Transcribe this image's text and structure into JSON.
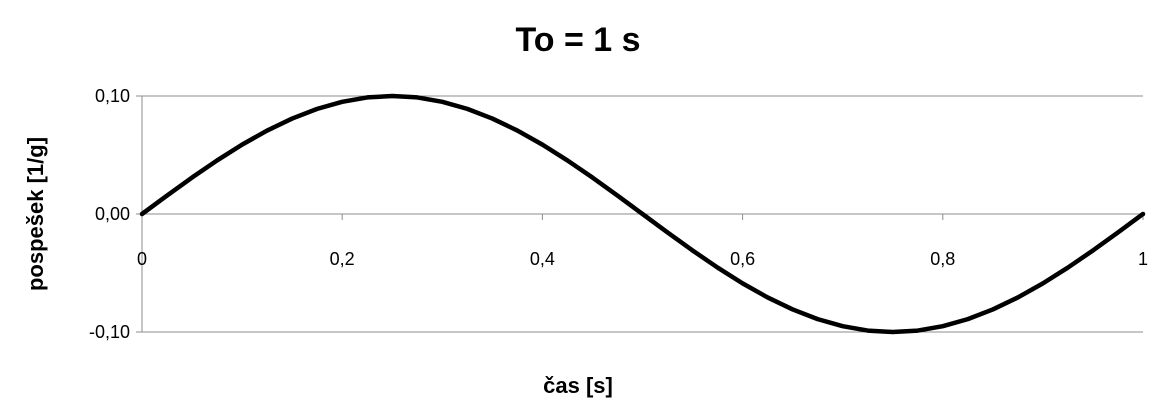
{
  "chart_data": {
    "type": "line",
    "title": "To = 1 s",
    "xlabel": "čas [s]",
    "ylabel": "pospešek [1/g]",
    "xlim": [
      0,
      1
    ],
    "ylim": [
      -0.1,
      0.1
    ],
    "x_ticks": [
      0,
      0.2,
      0.4,
      0.6,
      0.8,
      1
    ],
    "x_tick_labels": [
      "0",
      "0,2",
      "0,4",
      "0,6",
      "0,8",
      "1"
    ],
    "y_ticks": [
      0.1,
      0.0,
      -0.1
    ],
    "y_tick_labels": [
      "0,10",
      "0,00",
      "-0,10"
    ],
    "grid": "horizontal",
    "legend": "none",
    "series": [
      {
        "color": "#000000",
        "x": [
          0.0,
          0.025,
          0.05,
          0.075,
          0.1,
          0.125,
          0.15,
          0.175,
          0.2,
          0.225,
          0.25,
          0.275,
          0.3,
          0.325,
          0.35,
          0.375,
          0.4,
          0.425,
          0.45,
          0.475,
          0.5,
          0.525,
          0.55,
          0.575,
          0.6,
          0.625,
          0.65,
          0.675,
          0.7,
          0.725,
          0.75,
          0.775,
          0.8,
          0.825,
          0.85,
          0.875,
          0.9,
          0.925,
          0.95,
          0.975,
          1.0
        ],
        "values": [
          0.0,
          0.0156,
          0.0309,
          0.0454,
          0.0588,
          0.0707,
          0.0809,
          0.0891,
          0.0951,
          0.0988,
          0.1,
          0.0988,
          0.0951,
          0.0891,
          0.0809,
          0.0707,
          0.0588,
          0.0454,
          0.0309,
          0.0156,
          0.0,
          -0.0156,
          -0.0309,
          -0.0454,
          -0.0588,
          -0.0707,
          -0.0809,
          -0.0891,
          -0.0951,
          -0.0988,
          -0.1,
          -0.0988,
          -0.0951,
          -0.0891,
          -0.0809,
          -0.0707,
          -0.0588,
          -0.0454,
          -0.0309,
          -0.0156,
          0.0
        ]
      }
    ]
  }
}
